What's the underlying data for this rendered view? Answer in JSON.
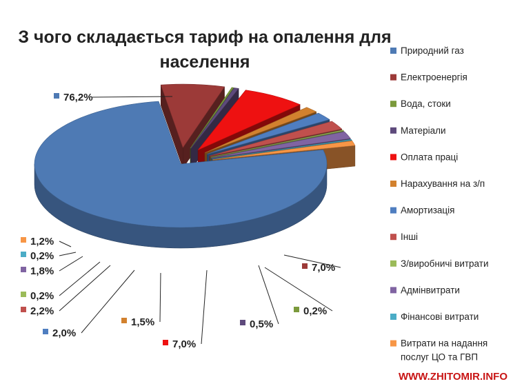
{
  "chart_data": {
    "type": "pie",
    "title_lines": [
      "З чого складається тариф на опалення для",
      "населення"
    ],
    "series": [
      {
        "name": "Природний газ",
        "value": 76.2,
        "label": "76,2%",
        "color": "#4e7ab4"
      },
      {
        "name": "Електроенергія",
        "value": 7.0,
        "label": "7,0%",
        "color": "#9c3a38"
      },
      {
        "name": "Вода, стоки",
        "value": 0.2,
        "label": "0,2%",
        "color": "#7b9a3c"
      },
      {
        "name": "Матеріали",
        "value": 0.5,
        "label": "0,5%",
        "color": "#5e4a7c"
      },
      {
        "name": "Оплата праці",
        "value": 7.0,
        "label": "7,0%",
        "color": "#ee1111"
      },
      {
        "name": "Нарахування на з/п",
        "value": 1.5,
        "label": "1,5%",
        "color": "#d2812e"
      },
      {
        "name": "Амортизація",
        "value": 2.0,
        "label": "2,0%",
        "color": "#4f7ec0"
      },
      {
        "name": "Інші",
        "value": 2.2,
        "label": "2,2%",
        "color": "#c0504d"
      },
      {
        "name": "З/виробничі витрати",
        "value": 0.2,
        "label": "0,2%",
        "color": "#9bbb59"
      },
      {
        "name": "Адмінвитрати",
        "value": 1.8,
        "label": "1,8%",
        "color": "#8064a2"
      },
      {
        "name": "Фінансові витрати",
        "value": 0.2,
        "label": "0,2%",
        "color": "#4bacc6"
      },
      {
        "name": "Витрати на надання послуг ЦО та ГВП",
        "value": 1.2,
        "label": "1,2%",
        "color": "#f79646"
      }
    ],
    "legend_position": "right"
  },
  "watermark": "WWW.ZHITOMIR.INFO"
}
